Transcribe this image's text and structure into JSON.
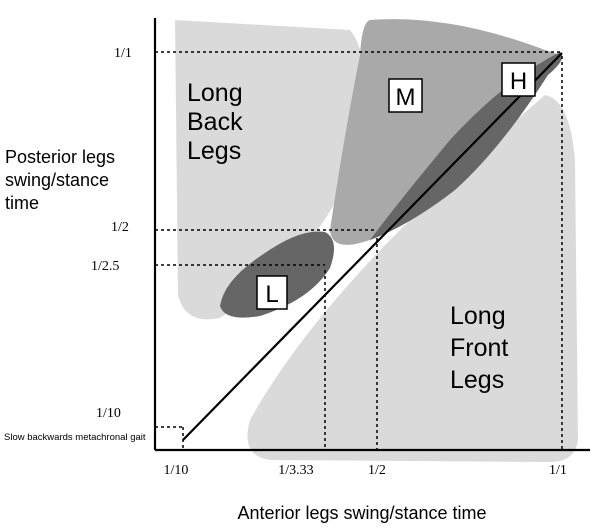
{
  "diagram": {
    "axes": {
      "x_label": "Anterior legs swing/stance time",
      "y_label_lines": [
        "Posterior legs",
        "swing/stance",
        "time"
      ],
      "x_ticks": [
        "1/10",
        "1/3.33",
        "1/2",
        "1/1"
      ],
      "y_ticks": [
        "1/1",
        "1/2",
        "1/2.5",
        "1/10"
      ]
    },
    "regions": {
      "long_back_legs": [
        "Long",
        "Back",
        "Legs"
      ],
      "long_front_legs": [
        "Long",
        "Front",
        "Legs"
      ],
      "medium": "M",
      "high": "H",
      "low": "L"
    },
    "annotation": "Slow backwards metachronal gait",
    "colors": {
      "light_region": "#dadada",
      "medium_region": "#a9a9a9",
      "dark_region": "#666666",
      "line": "#000000"
    }
  }
}
